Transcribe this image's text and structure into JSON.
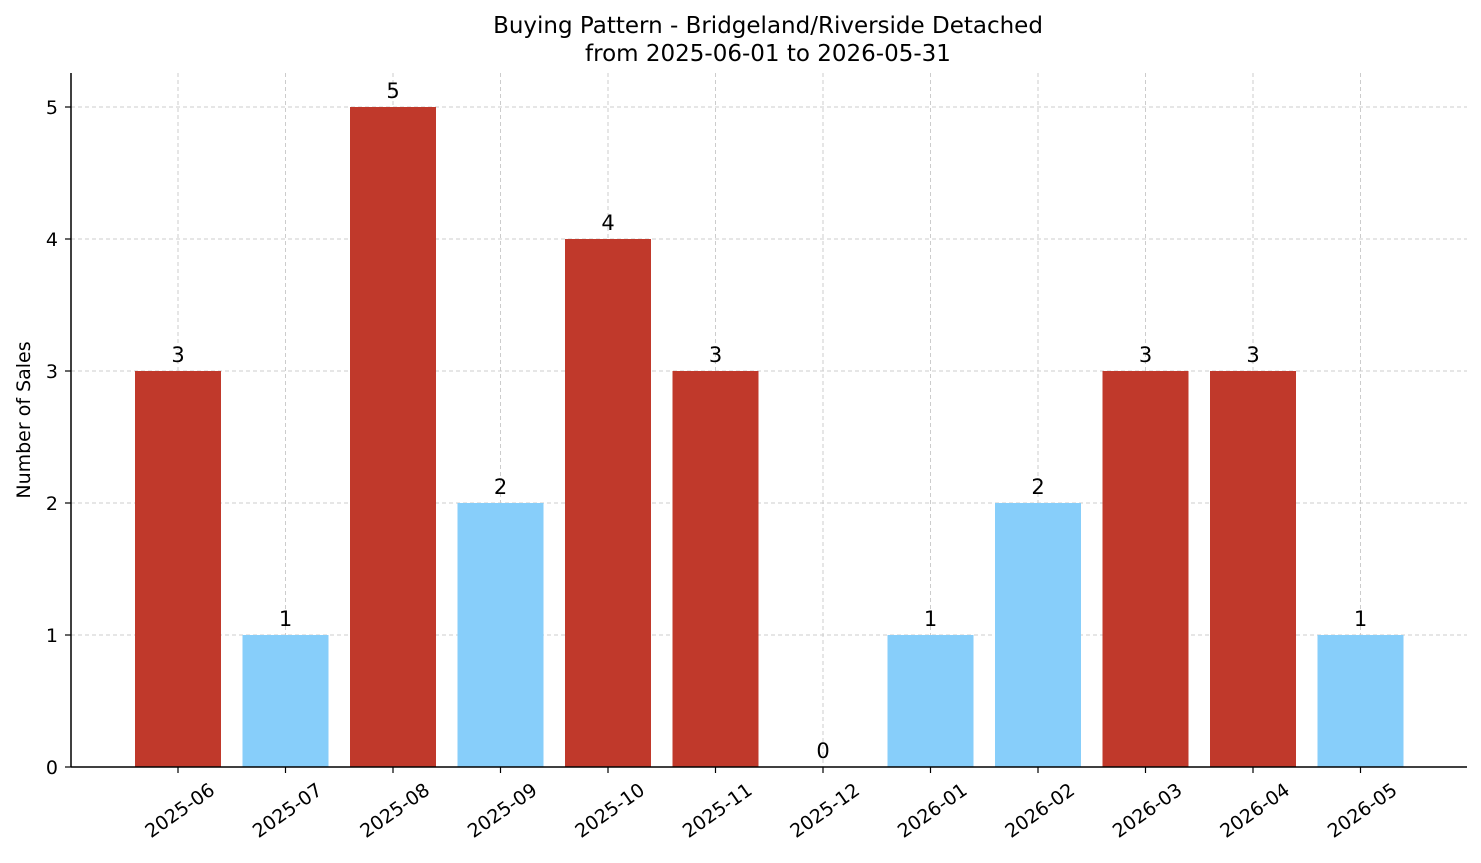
{
  "chart_data": {
    "type": "bar",
    "title": "Buying Pattern - Bridgeland/Riverside Detached",
    "subtitle": "from 2025-06-01 to 2026-05-31",
    "xlabel": "",
    "ylabel": "Number of Sales",
    "categories": [
      "2025-06",
      "2025-07",
      "2025-08",
      "2025-09",
      "2025-10",
      "2025-11",
      "2025-12",
      "2026-01",
      "2026-02",
      "2026-03",
      "2026-04",
      "2026-05"
    ],
    "values": [
      3,
      1,
      5,
      2,
      4,
      3,
      0,
      1,
      2,
      3,
      3,
      1
    ],
    "bar_colors": [
      "#c0392b",
      "#87cefa",
      "#c0392b",
      "#87cefa",
      "#c0392b",
      "#c0392b",
      "#87cefa",
      "#87cefa",
      "#87cefa",
      "#c0392b",
      "#c0392b",
      "#87cefa"
    ],
    "ylim": [
      0,
      5.25
    ],
    "yticks": [
      0,
      1,
      2,
      3,
      4,
      5
    ],
    "grid": true,
    "legend": "none"
  }
}
